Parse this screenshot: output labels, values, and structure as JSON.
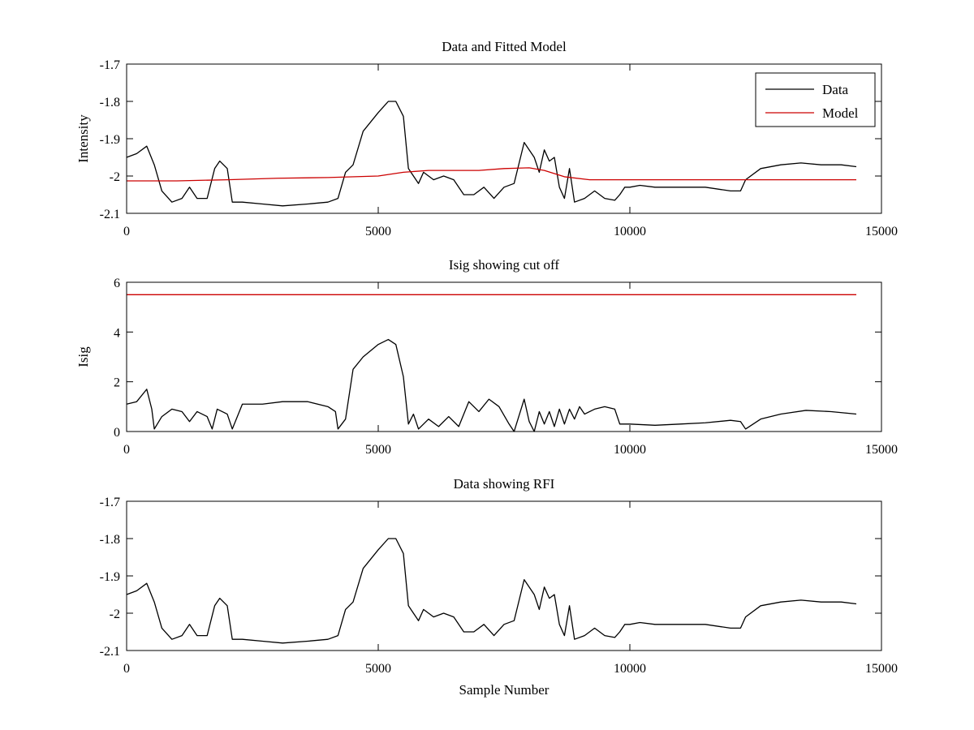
{
  "chart_data": [
    {
      "type": "line",
      "title": "Data and Fitted Model",
      "xlabel": "",
      "ylabel": "Intensity",
      "xlim": [
        0,
        15000
      ],
      "ylim": [
        -2.1,
        -1.7
      ],
      "xticks": [
        0,
        5000,
        10000,
        15000
      ],
      "xtick_labels": [
        "0",
        "5000",
        "10000",
        "15000"
      ],
      "yticks": [
        -2.1,
        -2.0,
        -1.9,
        -1.8,
        -1.7
      ],
      "ytick_labels": [
        "-2.1",
        "-2",
        "-1.9",
        "-1.8",
        "-1.7"
      ],
      "grid": false,
      "legend": {
        "placement": "top-right",
        "entries": [
          "Data",
          "Model"
        ]
      },
      "series": [
        {
          "name": "Data",
          "color": "#000000",
          "x": [
            0,
            200,
            400,
            550,
            700,
            900,
            1100,
            1250,
            1400,
            1600,
            1750,
            1850,
            2000,
            2100,
            2300,
            2700,
            3100,
            3600,
            4000,
            4200,
            4350,
            4500,
            4700,
            5000,
            5200,
            5350,
            5500,
            5600,
            5800,
            5900,
            6100,
            6300,
            6500,
            6700,
            6900,
            7100,
            7300,
            7500,
            7700,
            7900,
            8100,
            8200,
            8300,
            8400,
            8500,
            8600,
            8700,
            8800,
            8900,
            9100,
            9300,
            9500,
            9700,
            9800,
            9900,
            10000,
            10200,
            10500,
            11000,
            11500,
            12000,
            12200,
            12300,
            12600,
            13000,
            13400,
            13800,
            14200,
            14500
          ],
          "values": [
            -1.95,
            -1.94,
            -1.92,
            -1.97,
            -2.04,
            -2.07,
            -2.06,
            -2.03,
            -2.06,
            -2.06,
            -1.98,
            -1.96,
            -1.98,
            -2.07,
            -2.07,
            -2.075,
            -2.08,
            -2.075,
            -2.07,
            -2.06,
            -1.99,
            -1.97,
            -1.88,
            -1.83,
            -1.8,
            -1.8,
            -1.84,
            -1.98,
            -2.02,
            -1.99,
            -2.01,
            -2.0,
            -2.01,
            -2.05,
            -2.05,
            -2.03,
            -2.06,
            -2.03,
            -2.02,
            -1.91,
            -1.95,
            -1.99,
            -1.93,
            -1.96,
            -1.95,
            -2.03,
            -2.06,
            -1.98,
            -2.07,
            -2.06,
            -2.04,
            -2.06,
            -2.065,
            -2.05,
            -2.03,
            -2.03,
            -2.025,
            -2.03,
            -2.03,
            -2.03,
            -2.04,
            -2.04,
            -2.01,
            -1.98,
            -1.97,
            -1.965,
            -1.97,
            -1.97,
            -1.975
          ]
        },
        {
          "name": "Model",
          "color": "#cc0000",
          "x": [
            0,
            1000,
            2000,
            3000,
            4000,
            5000,
            5500,
            6000,
            6500,
            7000,
            7500,
            8000,
            8300,
            8700,
            9200,
            10000,
            11000,
            12000,
            13000,
            14500
          ],
          "values": [
            -2.013,
            -2.013,
            -2.01,
            -2.006,
            -2.004,
            -2.0,
            -1.99,
            -1.985,
            -1.985,
            -1.985,
            -1.98,
            -1.978,
            -1.985,
            -2.002,
            -2.01,
            -2.01,
            -2.01,
            -2.01,
            -2.01,
            -2.01
          ]
        }
      ]
    },
    {
      "type": "line",
      "title": "Isig showing cut off",
      "xlabel": "",
      "ylabel": "Isig",
      "xlim": [
        0,
        15000
      ],
      "ylim": [
        0,
        6
      ],
      "xticks": [
        0,
        5000,
        10000,
        15000
      ],
      "xtick_labels": [
        "0",
        "5000",
        "10000",
        "15000"
      ],
      "yticks": [
        0,
        2,
        4,
        6
      ],
      "ytick_labels": [
        "0",
        "2",
        "4",
        "6"
      ],
      "grid": false,
      "series": [
        {
          "color": "#000000",
          "x": [
            0,
            200,
            400,
            500,
            550,
            700,
            900,
            1100,
            1250,
            1400,
            1600,
            1700,
            1800,
            2000,
            2100,
            2300,
            2700,
            3100,
            3600,
            4000,
            4150,
            4200,
            4350,
            4500,
            4700,
            5000,
            5200,
            5350,
            5500,
            5600,
            5700,
            5800,
            6000,
            6200,
            6400,
            6600,
            6800,
            7000,
            7200,
            7400,
            7600,
            7700,
            7900,
            8000,
            8100,
            8200,
            8300,
            8400,
            8500,
            8600,
            8700,
            8800,
            8900,
            9000,
            9100,
            9300,
            9500,
            9700,
            9800,
            10000,
            10500,
            11000,
            11500,
            12000,
            12200,
            12300,
            12600,
            13000,
            13500,
            14000,
            14500
          ],
          "values": [
            1.1,
            1.2,
            1.7,
            0.9,
            0.1,
            0.6,
            0.9,
            0.8,
            0.4,
            0.8,
            0.6,
            0.1,
            0.9,
            0.7,
            0.1,
            1.1,
            1.1,
            1.2,
            1.2,
            1.0,
            0.8,
            0.1,
            0.5,
            2.5,
            3.0,
            3.5,
            3.7,
            3.5,
            2.2,
            0.3,
            0.7,
            0.1,
            0.5,
            0.2,
            0.6,
            0.2,
            1.2,
            0.8,
            1.3,
            1.0,
            0.3,
            0.0,
            1.3,
            0.4,
            0.0,
            0.8,
            0.3,
            0.8,
            0.2,
            0.9,
            0.3,
            0.9,
            0.5,
            1.0,
            0.7,
            0.9,
            1.0,
            0.9,
            0.3,
            0.3,
            0.25,
            0.3,
            0.35,
            0.45,
            0.4,
            0.1,
            0.5,
            0.7,
            0.85,
            0.8,
            0.7
          ]
        },
        {
          "color": "#cc0000",
          "x": [
            0,
            14500
          ],
          "values": [
            5.5,
            5.5
          ]
        }
      ]
    },
    {
      "type": "line",
      "title": "Data showing RFI",
      "xlabel": "Sample Number",
      "ylabel": "",
      "xlim": [
        0,
        15000
      ],
      "ylim": [
        -2.1,
        -1.7
      ],
      "xticks": [
        0,
        5000,
        10000,
        15000
      ],
      "xtick_labels": [
        "0",
        "5000",
        "10000",
        "15000"
      ],
      "yticks": [
        -2.1,
        -2.0,
        -1.9,
        -1.8,
        -1.7
      ],
      "ytick_labels": [
        "-2.1",
        "-2",
        "-1.9",
        "-1.8",
        "-1.7"
      ],
      "grid": false,
      "series": [
        {
          "color": "#000000",
          "x": [
            0,
            200,
            400,
            550,
            700,
            900,
            1100,
            1250,
            1400,
            1600,
            1750,
            1850,
            2000,
            2100,
            2300,
            2700,
            3100,
            3600,
            4000,
            4200,
            4350,
            4500,
            4700,
            5000,
            5200,
            5350,
            5500,
            5600,
            5800,
            5900,
            6100,
            6300,
            6500,
            6700,
            6900,
            7100,
            7300,
            7500,
            7700,
            7900,
            8100,
            8200,
            8300,
            8400,
            8500,
            8600,
            8700,
            8800,
            8900,
            9100,
            9300,
            9500,
            9700,
            9800,
            9900,
            10000,
            10200,
            10500,
            11000,
            11500,
            12000,
            12200,
            12300,
            12600,
            13000,
            13400,
            13800,
            14200,
            14500
          ],
          "values": [
            -1.95,
            -1.94,
            -1.92,
            -1.97,
            -2.04,
            -2.07,
            -2.06,
            -2.03,
            -2.06,
            -2.06,
            -1.98,
            -1.96,
            -1.98,
            -2.07,
            -2.07,
            -2.075,
            -2.08,
            -2.075,
            -2.07,
            -2.06,
            -1.99,
            -1.97,
            -1.88,
            -1.83,
            -1.8,
            -1.8,
            -1.84,
            -1.98,
            -2.02,
            -1.99,
            -2.01,
            -2.0,
            -2.01,
            -2.05,
            -2.05,
            -2.03,
            -2.06,
            -2.03,
            -2.02,
            -1.91,
            -1.95,
            -1.99,
            -1.93,
            -1.96,
            -1.95,
            -2.03,
            -2.06,
            -1.98,
            -2.07,
            -2.06,
            -2.04,
            -2.06,
            -2.065,
            -2.05,
            -2.03,
            -2.03,
            -2.025,
            -2.03,
            -2.03,
            -2.03,
            -2.04,
            -2.04,
            -2.01,
            -1.98,
            -1.97,
            -1.965,
            -1.97,
            -1.97,
            -1.975
          ]
        }
      ]
    }
  ]
}
